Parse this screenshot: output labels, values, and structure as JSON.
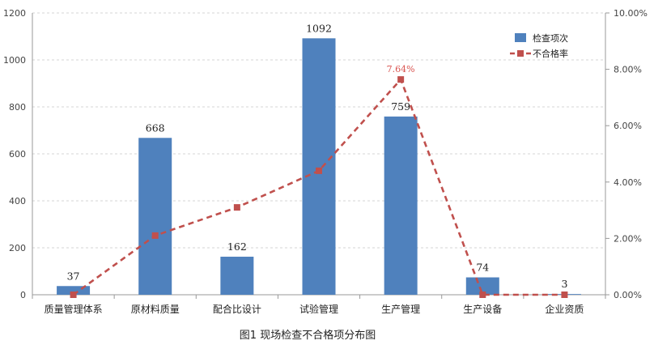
{
  "chart_data": {
    "type": "bar",
    "caption": "图1 现场检查不合格项分布图",
    "categories": [
      "质量管理体系",
      "原材料质量",
      "配合比设计",
      "试验管理",
      "生产管理",
      "生产设备",
      "企业资质"
    ],
    "series": [
      {
        "name": "检查项次",
        "type": "bar",
        "axis": "left",
        "color": "#4f81bd",
        "values": [
          37,
          668,
          162,
          1092,
          759,
          74,
          3
        ],
        "data_labels": [
          "37",
          "668",
          "162",
          "1092",
          "759",
          "74",
          "3"
        ]
      },
      {
        "name": "不合格率",
        "type": "line",
        "axis": "right",
        "color": "#c0504d",
        "line_style": "dashed",
        "marker": "square",
        "values": [
          0.0,
          2.1,
          3.1,
          4.4,
          7.64,
          0.0,
          0.0
        ],
        "data_labels": [
          "",
          "",
          "",
          "",
          "7.64%",
          "",
          ""
        ]
      }
    ],
    "y_left": {
      "min": 0,
      "max": 1200,
      "ticks": [
        "0",
        "200",
        "400",
        "600",
        "800",
        "1000",
        "1200"
      ]
    },
    "y_right": {
      "min": 0,
      "max": 10,
      "ticks": [
        "0.00%",
        "2.00%",
        "4.00%",
        "6.00%",
        "8.00%",
        "10.00%"
      ]
    },
    "grid": "horizontal-dashed",
    "legend_position": "top-right"
  }
}
